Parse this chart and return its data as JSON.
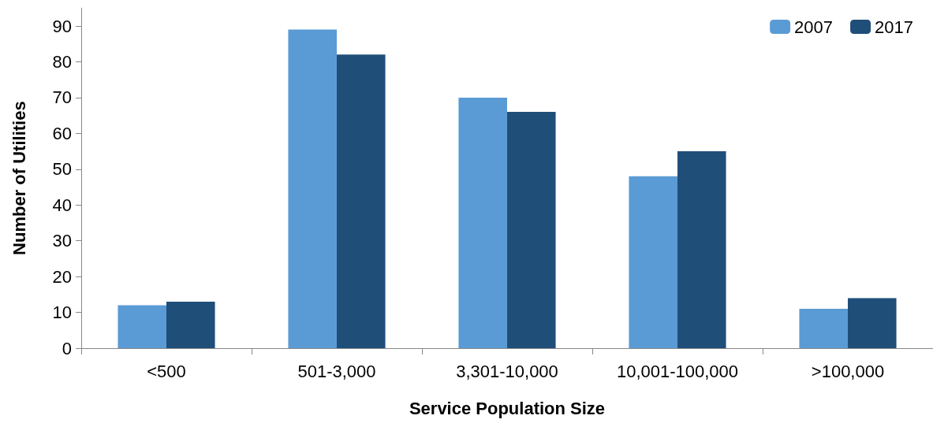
{
  "chart_data": {
    "type": "bar",
    "xlabel": "Service Population Size",
    "ylabel": "Number of Utilities",
    "categories": [
      "<500",
      "501-3,000",
      "3,301-10,000",
      "10,001-100,000",
      ">100,000"
    ],
    "series": [
      {
        "name": "2007",
        "color": "#5b9bd5",
        "values": [
          12,
          89,
          70,
          48,
          11
        ]
      },
      {
        "name": "2017",
        "color": "#1f4e79",
        "values": [
          13,
          82,
          66,
          55,
          14
        ]
      }
    ],
    "ylim": [
      0,
      95
    ],
    "yticks": [
      0,
      10,
      20,
      30,
      40,
      50,
      60,
      70,
      80,
      90
    ],
    "grid": false,
    "legend": "top right"
  }
}
